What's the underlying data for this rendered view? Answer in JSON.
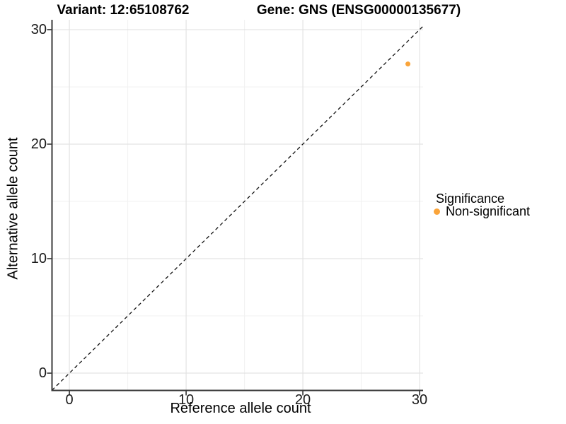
{
  "titles": {
    "variant": "Variant: 12:65108762",
    "gene": "Gene: GNS (ENSG00000135677)"
  },
  "legend": {
    "title": "Significance",
    "position": "right",
    "items": [
      {
        "label": "Non-significant",
        "color": "#FAA43A",
        "marker": "dot"
      }
    ]
  },
  "chart_data": {
    "type": "scatter",
    "title_left": "Variant: 12:65108762",
    "title_right": "Gene: GNS (ENSG00000135677)",
    "xlabel": "Reference allele count",
    "ylabel": "Alternative allele count",
    "xlim": [
      -1.49,
      30.3
    ],
    "ylim": [
      -1.51,
      30.86
    ],
    "x_ticks": [
      0,
      10,
      20,
      30
    ],
    "y_ticks": [
      0,
      10,
      20,
      30
    ],
    "x_minor_ticks": [
      5,
      15,
      25
    ],
    "y_minor_ticks": [
      5,
      15,
      25
    ],
    "grid": "major+minor",
    "legend_position": "right",
    "series": [
      {
        "name": "Non-significant",
        "color": "#FAA43A",
        "points": [
          {
            "x": 29,
            "y": 27
          }
        ]
      }
    ],
    "reference_line": {
      "kind": "identity",
      "dashed": true,
      "color": "#111111"
    }
  },
  "colors": {
    "background": "#FFFFFF",
    "grid_major": "#E3E3E3",
    "grid_minor": "#F1F1F1",
    "axis_line": "#3A3A3A",
    "tick_mark": "#333333",
    "tick_text": "#1A1A1A",
    "title_text": "#000000",
    "point": "#FAA43A"
  }
}
